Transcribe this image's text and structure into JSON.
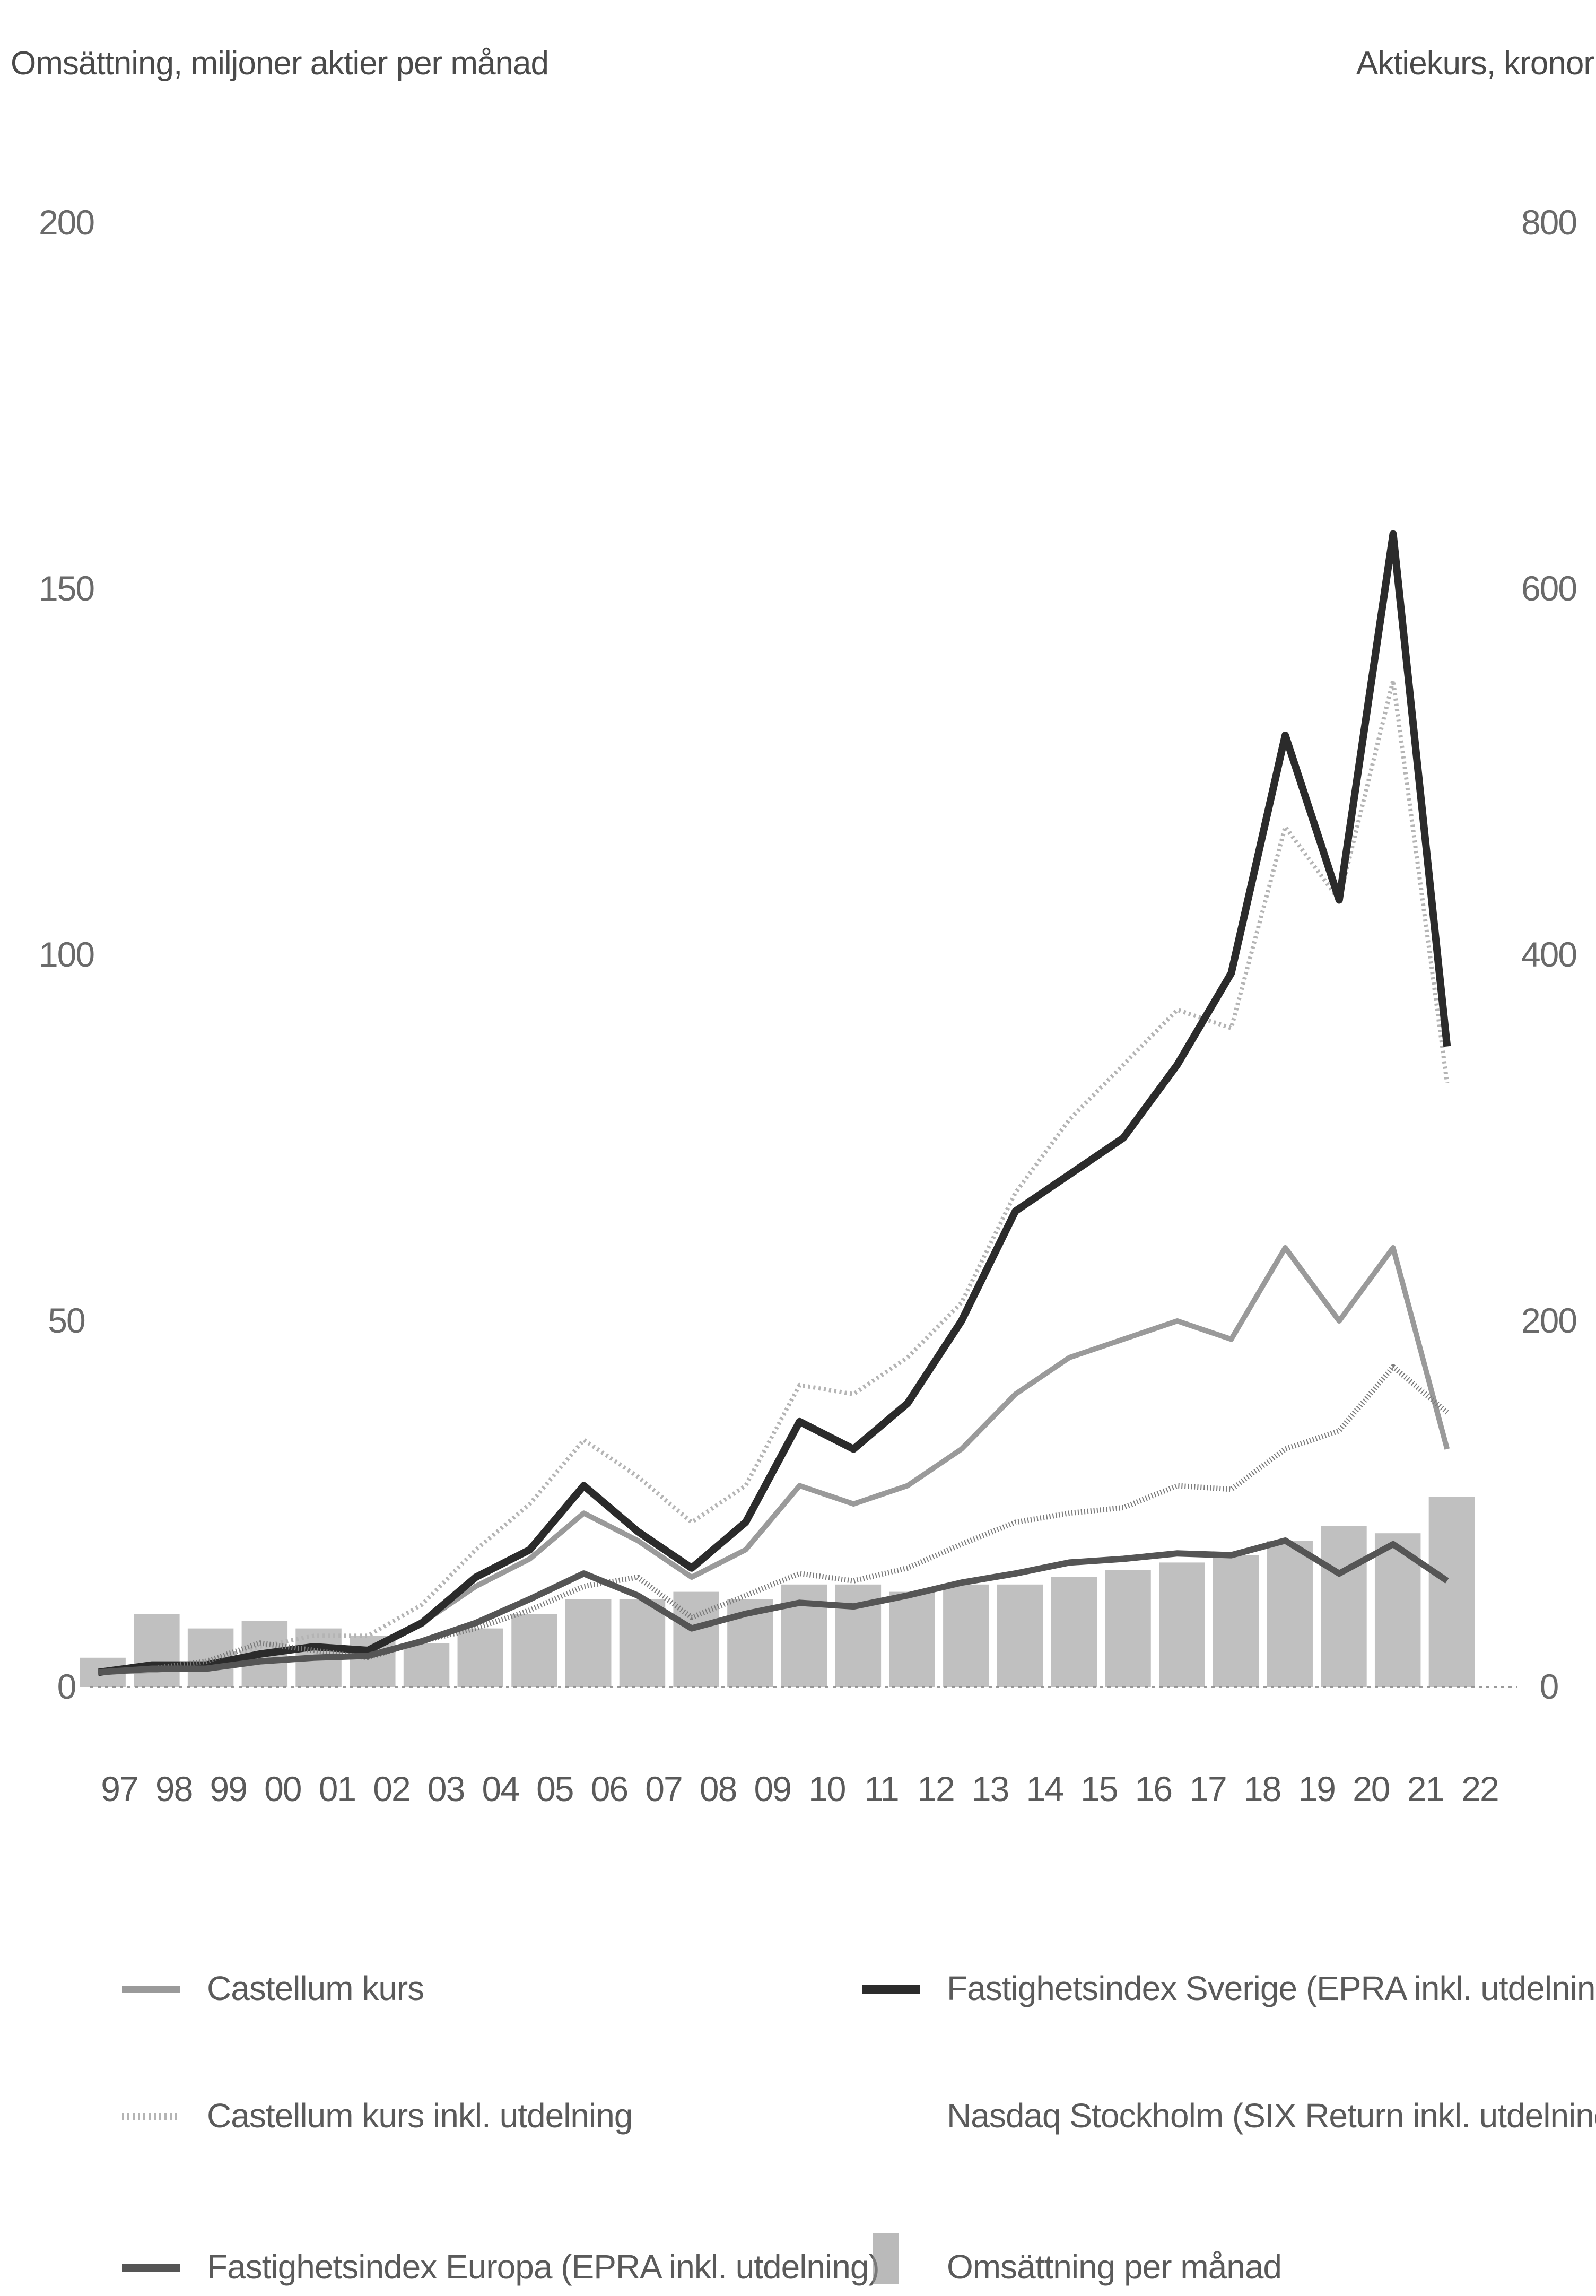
{
  "chart_data": {
    "type": "line",
    "left_axis": {
      "title": "Omsättning, miljoner aktier per månad",
      "ticks": [
        "200",
        "150",
        "100",
        "50",
        "0"
      ],
      "range": [
        0,
        200
      ]
    },
    "right_axis": {
      "title": "Aktiekurs, kronor",
      "ticks": [
        "800",
        "600",
        "400",
        "200",
        "0"
      ],
      "range": [
        0,
        800
      ]
    },
    "x_ticks": [
      "97",
      "98",
      "99",
      "00",
      "01",
      "02",
      "03",
      "04",
      "05",
      "06",
      "07",
      "08",
      "09",
      "10",
      "11",
      "12",
      "13",
      "14",
      "15",
      "16",
      "17",
      "18",
      "19",
      "20",
      "21",
      "22"
    ],
    "x_range": [
      1997,
      2023
    ],
    "legend": [
      {
        "label": "Castellum kurs",
        "key": "castellum"
      },
      {
        "label": "Fastighetsindex Sverige (EPRA inkl. utdelning)",
        "key": "epra_se"
      },
      {
        "label": "Castellum kurs inkl. utdelning",
        "key": "castellum_div"
      },
      {
        "label": "Nasdaq Stockholm (SIX Return inkl. utdelning)",
        "key": "six"
      },
      {
        "label": "Fastighetsindex Europa (EPRA inkl. utdelning)",
        "key": "epra_eu"
      },
      {
        "label": "Omsättning per månad",
        "key": "volume"
      }
    ],
    "colors": {
      "castellum": "#9a9a9a",
      "castellum_div": "#b4b4b4",
      "epra_se": "#2b2b2b",
      "six": "#7a7a7a",
      "epra_eu": "#555555",
      "volume": "#8c8c8c"
    },
    "series": [
      {
        "key": "castellum",
        "axis": "right",
        "points": [
          [
            1997,
            8
          ],
          [
            1998,
            9
          ],
          [
            1999,
            12
          ],
          [
            2000,
            18
          ],
          [
            2001,
            22
          ],
          [
            2002,
            20
          ],
          [
            2003,
            35
          ],
          [
            2004,
            55
          ],
          [
            2005,
            70
          ],
          [
            2006,
            95
          ],
          [
            2007,
            80
          ],
          [
            2008,
            60
          ],
          [
            2009,
            75
          ],
          [
            2010,
            110
          ],
          [
            2011,
            100
          ],
          [
            2012,
            110
          ],
          [
            2013,
            130
          ],
          [
            2014,
            160
          ],
          [
            2015,
            180
          ],
          [
            2016,
            190
          ],
          [
            2017,
            200
          ],
          [
            2018,
            190
          ],
          [
            2019,
            240
          ],
          [
            2020,
            200
          ],
          [
            2021,
            240
          ],
          [
            2022,
            130
          ]
        ]
      },
      {
        "key": "castellum_div",
        "axis": "right",
        "points": [
          [
            1997,
            8
          ],
          [
            1998,
            10
          ],
          [
            1999,
            14
          ],
          [
            2000,
            22
          ],
          [
            2001,
            28
          ],
          [
            2002,
            28
          ],
          [
            2003,
            45
          ],
          [
            2004,
            75
          ],
          [
            2005,
            100
          ],
          [
            2006,
            135
          ],
          [
            2007,
            115
          ],
          [
            2008,
            90
          ],
          [
            2009,
            110
          ],
          [
            2010,
            165
          ],
          [
            2011,
            160
          ],
          [
            2012,
            180
          ],
          [
            2013,
            210
          ],
          [
            2014,
            270
          ],
          [
            2015,
            310
          ],
          [
            2016,
            340
          ],
          [
            2017,
            370
          ],
          [
            2018,
            360
          ],
          [
            2019,
            470
          ],
          [
            2020,
            430
          ],
          [
            2021,
            550
          ],
          [
            2022,
            330
          ]
        ]
      },
      {
        "key": "epra_se",
        "axis": "right",
        "points": [
          [
            1997,
            8
          ],
          [
            1998,
            12
          ],
          [
            1999,
            12
          ],
          [
            2000,
            18
          ],
          [
            2001,
            22
          ],
          [
            2002,
            20
          ],
          [
            2003,
            35
          ],
          [
            2004,
            60
          ],
          [
            2005,
            75
          ],
          [
            2006,
            110
          ],
          [
            2007,
            85
          ],
          [
            2008,
            65
          ],
          [
            2009,
            90
          ],
          [
            2010,
            145
          ],
          [
            2011,
            130
          ],
          [
            2012,
            155
          ],
          [
            2013,
            200
          ],
          [
            2014,
            260
          ],
          [
            2015,
            280
          ],
          [
            2016,
            300
          ],
          [
            2017,
            340
          ],
          [
            2018,
            390
          ],
          [
            2019,
            520
          ],
          [
            2020,
            430
          ],
          [
            2021,
            630
          ],
          [
            2022,
            350
          ]
        ]
      },
      {
        "key": "six",
        "axis": "right",
        "points": [
          [
            1997,
            8
          ],
          [
            1998,
            10
          ],
          [
            1999,
            14
          ],
          [
            2000,
            24
          ],
          [
            2001,
            20
          ],
          [
            2002,
            16
          ],
          [
            2003,
            25
          ],
          [
            2004,
            32
          ],
          [
            2005,
            42
          ],
          [
            2006,
            55
          ],
          [
            2007,
            60
          ],
          [
            2008,
            38
          ],
          [
            2009,
            50
          ],
          [
            2010,
            62
          ],
          [
            2011,
            58
          ],
          [
            2012,
            65
          ],
          [
            2013,
            78
          ],
          [
            2014,
            90
          ],
          [
            2015,
            95
          ],
          [
            2016,
            98
          ],
          [
            2017,
            110
          ],
          [
            2018,
            108
          ],
          [
            2019,
            130
          ],
          [
            2020,
            140
          ],
          [
            2021,
            175
          ],
          [
            2022,
            150
          ]
        ]
      },
      {
        "key": "epra_eu",
        "axis": "right",
        "points": [
          [
            1997,
            8
          ],
          [
            1998,
            10
          ],
          [
            1999,
            10
          ],
          [
            2000,
            14
          ],
          [
            2001,
            16
          ],
          [
            2002,
            17
          ],
          [
            2003,
            25
          ],
          [
            2004,
            35
          ],
          [
            2005,
            48
          ],
          [
            2006,
            62
          ],
          [
            2007,
            50
          ],
          [
            2008,
            32
          ],
          [
            2009,
            40
          ],
          [
            2010,
            46
          ],
          [
            2011,
            44
          ],
          [
            2012,
            50
          ],
          [
            2013,
            57
          ],
          [
            2014,
            62
          ],
          [
            2015,
            68
          ],
          [
            2016,
            70
          ],
          [
            2017,
            73
          ],
          [
            2018,
            72
          ],
          [
            2019,
            80
          ],
          [
            2020,
            62
          ],
          [
            2021,
            78
          ],
          [
            2022,
            58
          ]
        ]
      }
    ],
    "volume": [
      [
        1997,
        4
      ],
      [
        1998,
        10
      ],
      [
        1999,
        8
      ],
      [
        2000,
        9
      ],
      [
        2001,
        8
      ],
      [
        2002,
        7
      ],
      [
        2003,
        6
      ],
      [
        2004,
        8
      ],
      [
        2005,
        10
      ],
      [
        2006,
        12
      ],
      [
        2007,
        12
      ],
      [
        2008,
        13
      ],
      [
        2009,
        12
      ],
      [
        2010,
        14
      ],
      [
        2011,
        14
      ],
      [
        2012,
        13
      ],
      [
        2013,
        14
      ],
      [
        2014,
        14
      ],
      [
        2015,
        15
      ],
      [
        2016,
        16
      ],
      [
        2017,
        17
      ],
      [
        2018,
        18
      ],
      [
        2019,
        20
      ],
      [
        2020,
        22
      ],
      [
        2021,
        21
      ],
      [
        2022,
        26
      ]
    ]
  }
}
